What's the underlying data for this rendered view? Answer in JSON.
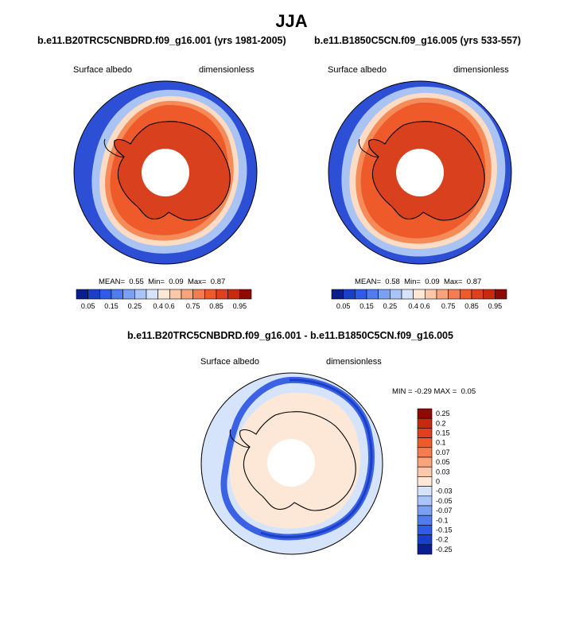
{
  "page": {
    "title": "JJA"
  },
  "colors": {
    "ocean_deep": "#2c4fd6",
    "ocean_mid": "#4a6fe6",
    "ice_edge": "#a9c4f2",
    "ice_light": "#fddcc6",
    "ice_mid": "#f68b5a",
    "ice_high": "#ee5a2a",
    "ice_peak": "#d9401e",
    "coast": "#000000"
  },
  "panels": [
    {
      "title": "b.e11.B20TRC5CNBDRD.f09_g16.001 (yrs 1981-2005)",
      "variable": "Surface albedo",
      "units": "dimensionless",
      "mean_label": "MEAN=",
      "mean": "0.55",
      "min_label": "Min=",
      "min": "0.09",
      "max_label": "Max=",
      "max": "0.87"
    },
    {
      "title": "b.e11.B1850C5CN.f09_g16.005 (yrs 533-557)",
      "variable": "Surface albedo",
      "units": "dimensionless",
      "mean_label": "MEAN=",
      "mean": "0.58",
      "min_label": "Min=",
      "min": "0.09",
      "max_label": "Max=",
      "max": "0.87"
    }
  ],
  "colorbar_abs": {
    "colors": [
      "#0a1f8f",
      "#1a3fc8",
      "#2f5be8",
      "#4f7df0",
      "#7aa0f4",
      "#a9c4f8",
      "#d6e4fb",
      "#fde8d8",
      "#fcc9a8",
      "#f9a47b",
      "#f47c50",
      "#ee5a2a",
      "#e0401c",
      "#c82a10",
      "#8f0a05"
    ],
    "ticks": [
      "0.05",
      "0.15",
      "0.25",
      "0.4",
      "0.6",
      "0.75",
      "0.85",
      "0.95"
    ]
  },
  "diff": {
    "title": "b.e11.B20TRC5CNBDRD.f09_g16.001 - b.e11.B1850C5CN.f09_g16.005",
    "variable": "Surface albedo",
    "units": "dimensionless",
    "min_label": "MIN =",
    "min": "-0.29",
    "max_label": "MAX =",
    "max": "0.05"
  },
  "colorbar_diff": {
    "colors": [
      "#8f0a05",
      "#c82a10",
      "#e0401c",
      "#ee5a2a",
      "#f47c50",
      "#f9a47b",
      "#fcc9a8",
      "#fde8d8",
      "#d6e4fb",
      "#a9c4f8",
      "#7aa0f4",
      "#4f7df0",
      "#2f5be8",
      "#1a3fc8",
      "#0a1f8f"
    ],
    "ticks": [
      "0.25",
      "0.2",
      "0.15",
      "0.1",
      "0.07",
      "0.05",
      "0.03",
      "0",
      "-0.03",
      "-0.05",
      "-0.07",
      "-0.1",
      "-0.15",
      "-0.2",
      "-0.25"
    ]
  }
}
